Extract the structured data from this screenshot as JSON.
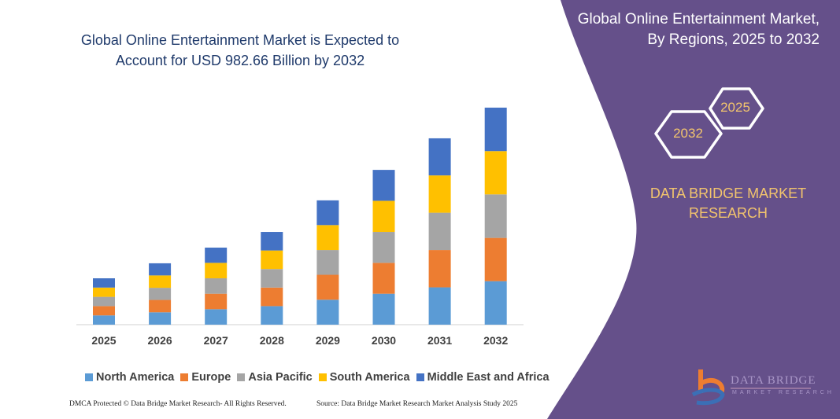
{
  "header": {
    "title": "Global Online Entertainment Market is Expected to Account for USD 982.66 Billion by 2032"
  },
  "side_panel": {
    "title_line1": "Global Online Entertainment Market,",
    "title_line2": "By Regions, 2025 to 2032",
    "hex_2025": "2025",
    "hex_2032": "2032",
    "brand_line1": "DATA BRIDGE MARKET",
    "brand_line2": "RESEARCH",
    "logo_text": "DATA BRIDGE",
    "logo_subtext": "MARKET RESEARCH",
    "panel_color": "#65508a",
    "accent_color": "#f2c46d"
  },
  "footer": {
    "dmca": "DMCA Protected © Data Bridge Market Research- All Rights Reserved.",
    "source": "Source: Data Bridge Market Research Market Analysis Study 2025"
  },
  "chart_data": {
    "type": "bar",
    "stacked": true,
    "title": "Global Online Entertainment Market is Expected to Account for USD 982.66 Billion by 2032",
    "xlabel": "",
    "ylabel": "",
    "y_axis_visible": false,
    "grid": false,
    "legend_position": "bottom",
    "categories": [
      "2025",
      "2026",
      "2027",
      "2028",
      "2029",
      "2030",
      "2031",
      "2032"
    ],
    "series": [
      {
        "name": "North America",
        "color": "#5b9bd5",
        "values": [
          42,
          56,
          70,
          84,
          113,
          140,
          169,
          197
        ]
      },
      {
        "name": "Europe",
        "color": "#ed7d31",
        "values": [
          42,
          56,
          70,
          84,
          113,
          140,
          169,
          196
        ]
      },
      {
        "name": "Asia Pacific",
        "color": "#a5a5a5",
        "values": [
          42,
          55,
          70,
          84,
          112,
          140,
          169,
          197
        ]
      },
      {
        "name": "South America",
        "color": "#ffc000",
        "values": [
          42,
          56,
          70,
          84,
          113,
          141,
          169,
          196
        ]
      },
      {
        "name": "Middle East and Africa",
        "color": "#4472c4",
        "values": [
          42,
          55,
          69,
          84,
          112,
          140,
          168,
          197
        ]
      }
    ],
    "ylim": [
      0,
      1000
    ]
  }
}
